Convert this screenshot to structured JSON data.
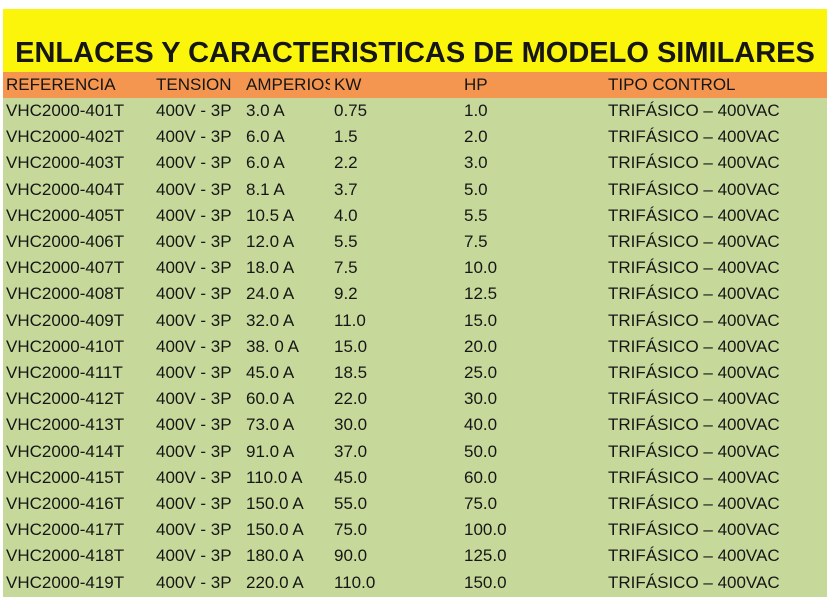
{
  "title": "ENLACES Y CARACTERISTICAS DE MODELO SIMILARES",
  "headers": [
    "REFERENCIA",
    "TENSION",
    "AMPERIOS",
    "KW",
    "HP",
    "TIPO CONTROL"
  ],
  "rows": [
    [
      "VHC2000-401T",
      "400V - 3P",
      "3.0 A",
      "0.75",
      "1.0",
      "TRIFÁSICO – 400VAC"
    ],
    [
      "VHC2000-402T",
      "400V - 3P",
      "6.0 A",
      "1.5",
      "2.0",
      "TRIFÁSICO – 400VAC"
    ],
    [
      "VHC2000-403T",
      "400V - 3P",
      "6.0 A",
      "2.2",
      "3.0",
      "TRIFÁSICO – 400VAC"
    ],
    [
      "VHC2000-404T",
      "400V - 3P",
      "8.1 A",
      "3.7",
      "5.0",
      "TRIFÁSICO – 400VAC"
    ],
    [
      "VHC2000-405T",
      "400V - 3P",
      "10.5 A",
      "4.0",
      "5.5",
      "TRIFÁSICO – 400VAC"
    ],
    [
      "VHC2000-406T",
      "400V - 3P",
      "12.0 A",
      "5.5",
      "7.5",
      "TRIFÁSICO – 400VAC"
    ],
    [
      "VHC2000-407T",
      "400V - 3P",
      "18.0 A",
      "7.5",
      "10.0",
      "TRIFÁSICO – 400VAC"
    ],
    [
      "VHC2000-408T",
      "400V - 3P",
      "24.0 A",
      "9.2",
      "12.5",
      "TRIFÁSICO – 400VAC"
    ],
    [
      "VHC2000-409T",
      "400V - 3P",
      "32.0 A",
      "11.0",
      "15.0",
      "TRIFÁSICO – 400VAC"
    ],
    [
      "VHC2000-410T",
      "400V - 3P",
      "38. 0 A",
      "15.0",
      "20.0",
      "TRIFÁSICO – 400VAC"
    ],
    [
      "VHC2000-411T",
      "400V - 3P",
      "45.0 A",
      "18.5",
      "25.0",
      "TRIFÁSICO – 400VAC"
    ],
    [
      "VHC2000-412T",
      "400V - 3P",
      "60.0 A",
      "22.0",
      "30.0",
      "TRIFÁSICO – 400VAC"
    ],
    [
      "VHC2000-413T",
      "400V - 3P",
      "73.0 A",
      "30.0",
      "40.0",
      "TRIFÁSICO – 400VAC"
    ],
    [
      "VHC2000-414T",
      "400V - 3P",
      "91.0 A",
      "37.0",
      "50.0",
      "TRIFÁSICO – 400VAC"
    ],
    [
      "VHC2000-415T",
      "400V - 3P",
      "110.0 A",
      "45.0",
      "60.0",
      "TRIFÁSICO – 400VAC"
    ],
    [
      "VHC2000-416T",
      "400V - 3P",
      "150.0 A",
      "55.0",
      "75.0",
      "TRIFÁSICO – 400VAC"
    ],
    [
      "VHC2000-417T",
      "400V - 3P",
      "150.0 A",
      "75.0",
      "100.0",
      "TRIFÁSICO – 400VAC"
    ],
    [
      "VHC2000-418T",
      "400V - 3P",
      "180.0 A",
      "90.0",
      "125.0",
      "TRIFÁSICO – 400VAC"
    ],
    [
      "VHC2000-419T",
      "400V - 3P",
      "220.0 A",
      "110.0",
      "150.0",
      "TRIFÁSICO – 400VAC"
    ]
  ],
  "colors": {
    "title_band": "#fbf50c",
    "header_band": "#f4964f",
    "table_body": "#c6d99b",
    "text": "#161616"
  }
}
